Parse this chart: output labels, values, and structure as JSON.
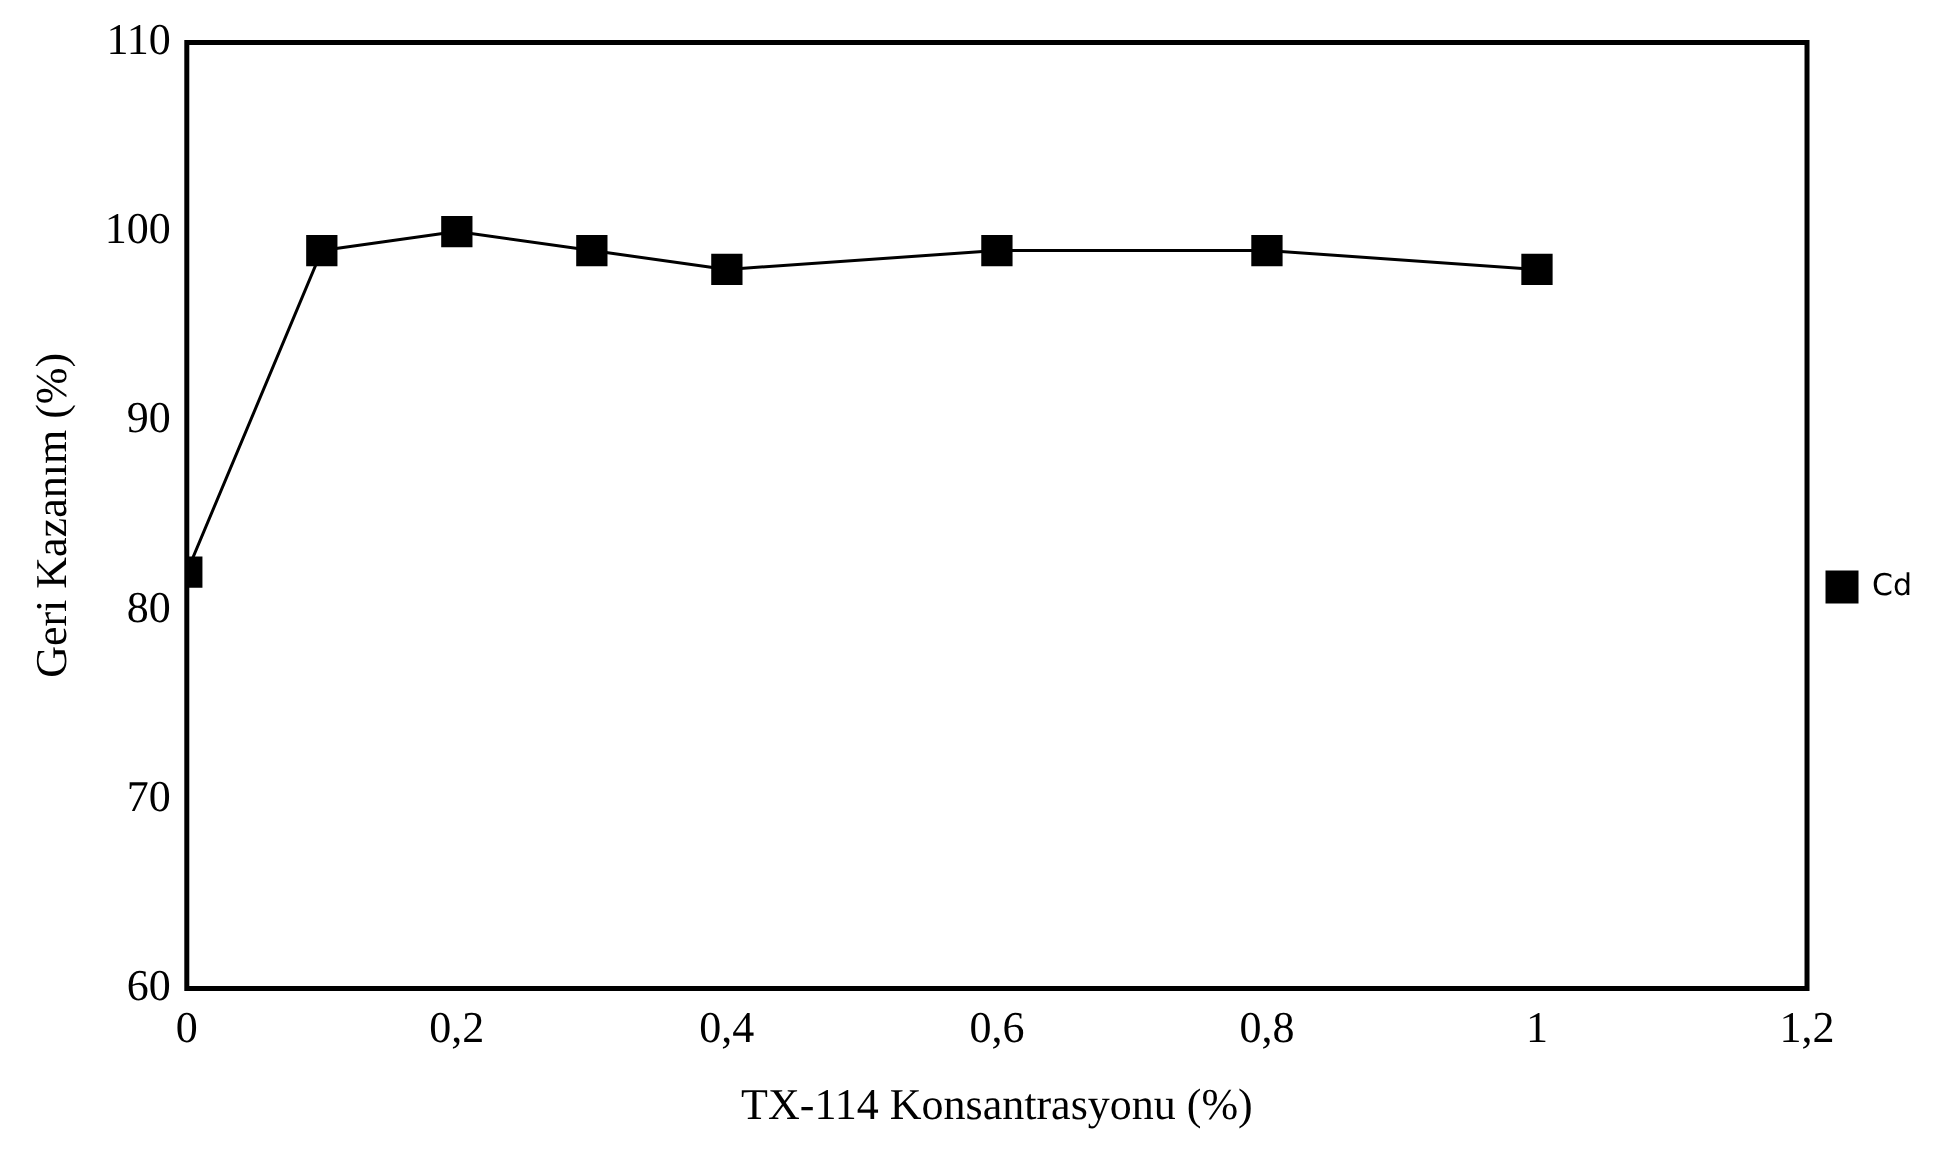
{
  "chart_data": {
    "type": "line",
    "xlabel": "TX-114 Konsantrasyonu (%)",
    "ylabel": "Geri Kazanım (%)",
    "x": [
      0,
      0.1,
      0.2,
      0.3,
      0.4,
      0.6,
      0.8,
      1
    ],
    "series": [
      {
        "name": "Cd",
        "color": "#000000",
        "values": [
          82,
          99,
          100,
          99,
          98,
          99,
          99,
          98
        ]
      }
    ],
    "xlim": [
      0,
      1.2
    ],
    "xticks": [
      0,
      {
        "value": 0.2,
        "label": "0,2"
      },
      {
        "value": 0.4,
        "label": "0,4"
      },
      {
        "value": 0.6,
        "label": "0,6"
      },
      {
        "value": 0.8,
        "label": "0,8"
      },
      1,
      {
        "value": 1.2,
        "label": "1,2"
      }
    ],
    "ylim": [
      60,
      110
    ],
    "yticks": [
      60,
      70,
      80,
      90,
      100,
      110
    ],
    "grid": false,
    "legend": "right",
    "marker": "square",
    "line_style": "solid"
  }
}
